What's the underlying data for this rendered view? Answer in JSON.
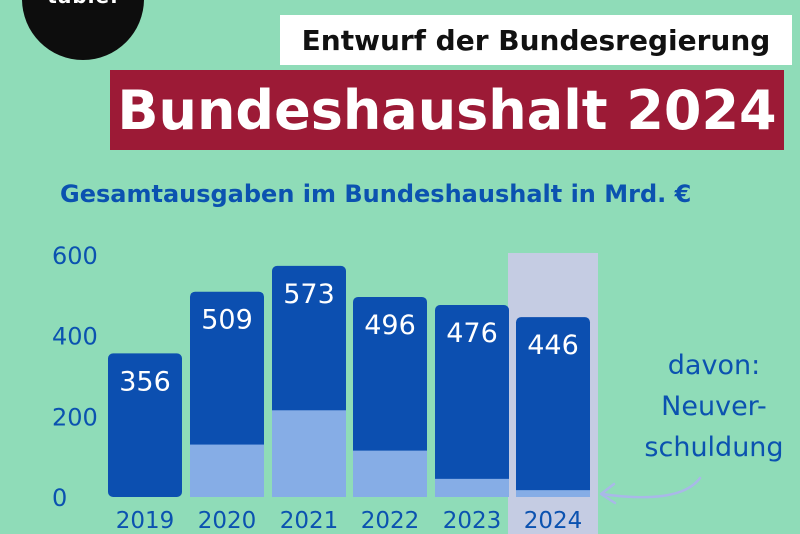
{
  "logo": {
    "text": "table."
  },
  "header": {
    "supertitle": "Entwurf der Bundesregierung",
    "title": "Bundeshaushalt 2024"
  },
  "colors": {
    "background": "#8fdcb8",
    "total_bar": "#0c4fb0",
    "new_debt_bar": "#86ade6",
    "highlight": "#c5cce3",
    "title_band": "#9c1a36",
    "text_blue": "#0b52b0"
  },
  "chart_data": {
    "type": "bar",
    "title": "Gesamtausgaben im Bundeshaushalt in Mrd. €",
    "categories": [
      "2019",
      "2020",
      "2021",
      "2022",
      "2023",
      "2024"
    ],
    "series": [
      {
        "name": "Gesamtausgaben",
        "values": [
          356,
          509,
          573,
          496,
          476,
          446
        ]
      },
      {
        "name": "davon: Neuverschuldung",
        "values": [
          0,
          130,
          215,
          115,
          45,
          17
        ]
      }
    ],
    "data_labels": [
      "356",
      "509",
      "573",
      "496",
      "476",
      "446"
    ],
    "yticks": [
      "0",
      "200",
      "400",
      "600"
    ],
    "ylim": [
      0,
      600
    ],
    "highlight_category": "2024",
    "overlay": true,
    "grid": false
  },
  "annotation": {
    "lines": [
      "davon:",
      "Neuver-",
      "schuldung"
    ]
  }
}
